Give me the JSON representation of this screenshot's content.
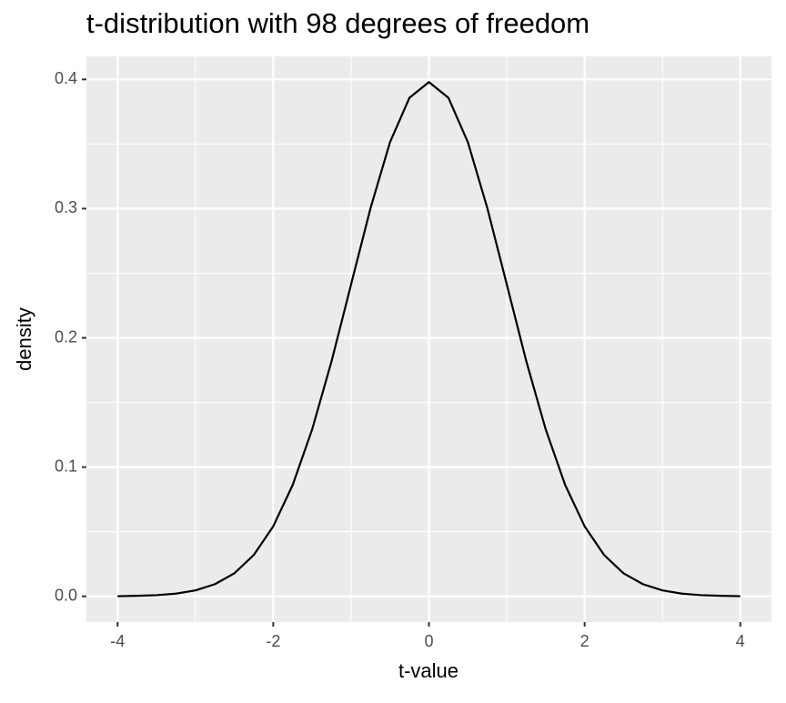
{
  "chart_data": {
    "type": "line",
    "title": "t-distribution with 98 degrees of freedom",
    "x_label": "t-value",
    "y_label": "density",
    "x": [
      -4,
      -3.75,
      -3.5,
      -3.25,
      -3,
      -2.75,
      -2.5,
      -2.25,
      -2,
      -1.75,
      -1.5,
      -1.25,
      -1,
      -0.75,
      -0.5,
      -0.25,
      0,
      0.25,
      0.5,
      0.75,
      1,
      1.25,
      1.5,
      1.75,
      2,
      2.25,
      2.5,
      2.75,
      3,
      3.25,
      3.5,
      3.75,
      4
    ],
    "series": [
      {
        "color": "#000000",
        "values": [
          0.0001,
          0.0004,
          0.0009,
          0.0021,
          0.0046,
          0.0094,
          0.0178,
          0.032,
          0.0542,
          0.0862,
          0.1292,
          0.1821,
          0.2414,
          0.3004,
          0.3514,
          0.3858,
          0.3979,
          0.3858,
          0.3514,
          0.3004,
          0.2414,
          0.1821,
          0.1292,
          0.0862,
          0.0542,
          0.032,
          0.0178,
          0.0094,
          0.0046,
          0.0021,
          0.0009,
          0.0004,
          0.0001
        ]
      }
    ],
    "xlim": [
      -4.4,
      4.4
    ],
    "ylim": [
      -0.0199,
      0.4178
    ],
    "xticks": [
      -4,
      -2,
      0,
      2,
      4
    ],
    "yticks": [
      {
        "value": 0,
        "label": "0.0"
      },
      0.1,
      0.2,
      0.3,
      0.4
    ],
    "x_minor_grid": [
      -3,
      -1,
      1,
      3
    ],
    "y_minor_grid": [
      0.05,
      0.15,
      0.25,
      0.35
    ],
    "grid": true,
    "panel_color": "#ebebeb",
    "grid_color": "#ffffff"
  }
}
